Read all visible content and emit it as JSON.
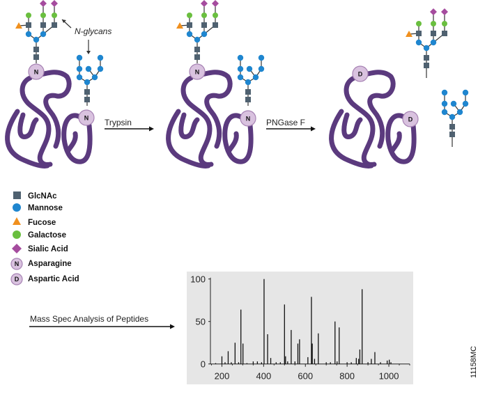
{
  "labels": {
    "n_glycans": "N-glycans",
    "step1": "Trypsin",
    "step2": "PNGase F",
    "step3": "Mass Spec Analysis of Peptides",
    "figure_code": "11158MC",
    "residue_n": "N",
    "residue_d": "D"
  },
  "legend": [
    {
      "label": "GlcNAc",
      "shape": "square",
      "color": "#4f6170"
    },
    {
      "label": "Mannose",
      "shape": "circle",
      "color": "#1f86cf"
    },
    {
      "label": "Fucose",
      "shape": "triangle",
      "color": "#f0901e"
    },
    {
      "label": "Galactose",
      "shape": "circle",
      "color": "#6abf3f"
    },
    {
      "label": "Sialic Acid",
      "shape": "diamond",
      "color": "#a54c9e"
    },
    {
      "label": "Asparagine",
      "shape": "circle-letter",
      "letter": "N",
      "color": "#d9c2df"
    },
    {
      "label": "Aspartic Acid",
      "shape": "circle-letter",
      "letter": "D",
      "color": "#d9c2df"
    }
  ],
  "colors": {
    "protein": "#5b3a7e",
    "spectrum_bg": "#e6e6e6"
  },
  "chart_data": {
    "type": "bar",
    "xlim": [
      145,
      1100
    ],
    "ylim": [
      0,
      100
    ],
    "xticks": [
      200,
      400,
      600,
      800,
      1000
    ],
    "yticks": [
      0,
      50,
      100
    ],
    "grid": false,
    "x": [
      170,
      200,
      215,
      230,
      245,
      263,
      280,
      291,
      301,
      320,
      350,
      370,
      390,
      402,
      419,
      434,
      460,
      480,
      500,
      505,
      515,
      532,
      550,
      564,
      572,
      612,
      629,
      633,
      644,
      662,
      700,
      720,
      742,
      752,
      762,
      800,
      820,
      844,
      855,
      861,
      872,
      900,
      916,
      933,
      960,
      992,
      1002,
      1010
    ],
    "values": [
      1,
      9,
      2,
      15,
      2,
      25,
      2,
      64,
      24,
      1,
      3,
      3,
      2,
      100,
      35,
      7,
      2,
      2,
      70,
      9,
      3,
      40,
      3,
      24,
      29,
      8,
      79,
      24,
      6,
      36,
      2,
      2,
      50,
      3,
      43,
      2,
      2,
      7,
      6,
      17,
      88,
      2,
      6,
      14,
      2,
      4,
      5,
      2
    ]
  }
}
